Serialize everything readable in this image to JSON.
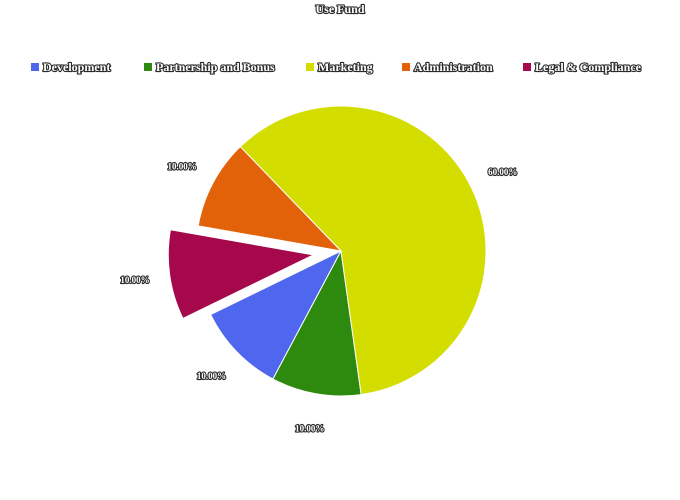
{
  "chart_data": {
    "type": "pie",
    "title": "Use Fund",
    "legend_position": "top",
    "categories": [
      "Development",
      "Partnership and Bonus",
      "Marketing",
      "Administration",
      "Legal & Compliance"
    ],
    "values": [
      10,
      10,
      60,
      10,
      10
    ],
    "value_labels": [
      "10.00%",
      "10.00%",
      "60.00%",
      "10.00%",
      "10.00%"
    ],
    "colors": [
      "#4f66ef",
      "#2e8a0e",
      "#d3de00",
      "#e2620a",
      "#a5084b"
    ],
    "exploded": [
      "Legal & Compliance"
    ]
  }
}
